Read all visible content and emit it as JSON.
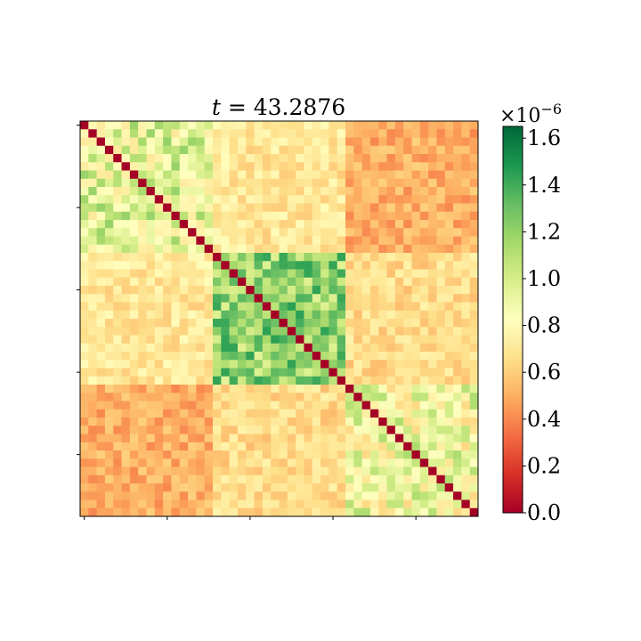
{
  "chart_data": {
    "type": "heatmap",
    "title": "t = 43.2876",
    "xlabel": "",
    "ylabel": "",
    "n": 48,
    "blocks": [
      {
        "start": 0,
        "end": 16
      },
      {
        "start": 16,
        "end": 32
      },
      {
        "start": 32,
        "end": 48
      }
    ],
    "block_mean_values": [
      [
        0.95,
        0.7,
        0.5
      ],
      [
        0.7,
        1.2,
        0.65
      ],
      [
        0.5,
        0.65,
        0.88
      ]
    ],
    "diagonal_value": 0.0,
    "colorbar": {
      "min": 0.0,
      "max": 1.65,
      "ticks": [
        "0.0",
        "0.2",
        "0.4",
        "0.6",
        "0.8",
        "1.0",
        "1.2",
        "1.4",
        "1.6"
      ],
      "tick_values": [
        0.0,
        0.2,
        0.4,
        0.6,
        0.8,
        1.0,
        1.2,
        1.4,
        1.6
      ],
      "multiplier": "×10−6",
      "colormap": "RdYlGn"
    },
    "x_tick_count": 5,
    "y_tick_count": 5,
    "grid": false
  }
}
